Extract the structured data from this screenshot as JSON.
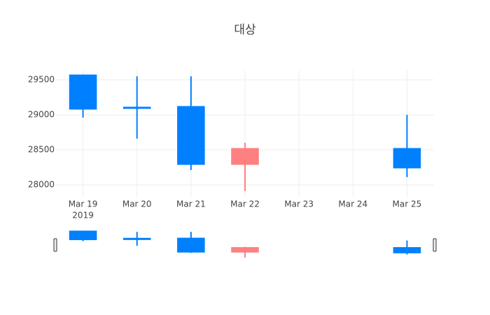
{
  "chart_data": {
    "type": "candlestick",
    "title": "대상",
    "xticks": [
      "Mar 19",
      "Mar 20",
      "Mar 21",
      "Mar 22",
      "Mar 23",
      "Mar 24",
      "Mar 25"
    ],
    "x_year_label": "2019",
    "x": [
      "Mar 19",
      "Mar 20",
      "Mar 21",
      "Mar 22",
      "Mar 25"
    ],
    "open": [
      29560,
      29100,
      29110,
      28300,
      28510
    ],
    "high": [
      29560,
      29550,
      29550,
      28600,
      29000
    ],
    "low": [
      28960,
      28660,
      28210,
      27910,
      28110
    ],
    "close": [
      29090,
      29100,
      28300,
      28510,
      28250
    ],
    "increasing_color": "#ff8080",
    "decreasing_color": "#0080ff",
    "ylim": [
      27820,
      29640
    ],
    "yticks": [
      28000,
      28500,
      29000,
      29500
    ],
    "grid": true,
    "rangeslider": true
  }
}
